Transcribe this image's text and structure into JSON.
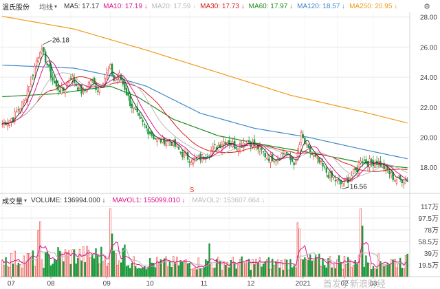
{
  "header": {
    "stock_name": "温氏股份",
    "period_label": "均线",
    "period_icon": "chevron-down-icon",
    "ma_items": [
      {
        "label": "MA5: 17.17",
        "color": "#333333",
        "arrow": ""
      },
      {
        "label": "MA10: 17.19",
        "color": "#e0138a",
        "arrow": "↓"
      },
      {
        "label": "MA20: 17.59",
        "color": "#b9b9b9",
        "arrow": "↓"
      },
      {
        "label": "MA30: 17.73",
        "color": "#d81b1b",
        "arrow": "↓"
      },
      {
        "label": "MA60: 17.97",
        "color": "#1e8a1e",
        "arrow": "↓"
      },
      {
        "label": "MA120: 18.57",
        "color": "#3c87c8",
        "arrow": "↓"
      },
      {
        "label": "MA250: 20.95",
        "color": "#ef9a1a",
        "arrow": "↓"
      }
    ],
    "settings_icon": "gear-icon"
  },
  "volume_header": {
    "title": "成交量",
    "items": [
      {
        "label": "VOLUME: 136994.000",
        "color": "#333333",
        "arrow": "↓"
      },
      {
        "label": "MAVOL1: 155099.010",
        "color": "#e0138a",
        "arrow": "↓"
      },
      {
        "label": "MAVOL2: 153607.664",
        "color": "#b9b9b9",
        "arrow": "↓"
      }
    ]
  },
  "watermark": "首发于新浪财经",
  "colors": {
    "up": "#e8413c",
    "down": "#1c9a3c",
    "grid": "#e6e6e6",
    "axis_text": "#444444"
  },
  "chart_data": [
    {
      "type": "candlestick",
      "title": "",
      "ylim": [
        16.5,
        28.4
      ],
      "y_ticks": [
        "28.00",
        "26.00",
        "24.00",
        "22.00",
        "20.00",
        "18.00"
      ],
      "x_ticks": [
        "07",
        "08",
        "09",
        "10",
        "11",
        "12",
        "2021",
        "02",
        "03"
      ],
      "grid": true,
      "annotations": [
        {
          "label": "26.18",
          "type": "high"
        },
        {
          "label": "16.56",
          "type": "low"
        },
        {
          "label": "S",
          "type": "marker"
        }
      ],
      "anchors": [
        [
          0,
          20.9,
          "d"
        ],
        [
          6,
          21.3,
          "u"
        ],
        [
          12,
          22.4,
          "u"
        ],
        [
          17,
          24.3,
          "u"
        ],
        [
          21,
          25.9,
          "u"
        ],
        [
          24,
          25.2,
          "d"
        ],
        [
          27,
          24.1,
          "d"
        ],
        [
          30,
          23.3,
          "d"
        ],
        [
          34,
          23.1,
          "u"
        ],
        [
          38,
          24.1,
          "u"
        ],
        [
          41,
          23.5,
          "d"
        ],
        [
          45,
          22.9,
          "d"
        ],
        [
          49,
          23.8,
          "u"
        ],
        [
          53,
          23.2,
          "d"
        ],
        [
          57,
          24.0,
          "u"
        ],
        [
          60,
          24.6,
          "u"
        ],
        [
          62,
          23.8,
          "d"
        ],
        [
          65,
          24.1,
          "u"
        ],
        [
          68,
          23.3,
          "d"
        ],
        [
          71,
          22.3,
          "d"
        ],
        [
          76,
          21.2,
          "d"
        ],
        [
          80,
          20.6,
          "d"
        ],
        [
          86,
          19.8,
          "d"
        ],
        [
          93,
          19.8,
          "u"
        ],
        [
          100,
          18.9,
          "d"
        ],
        [
          105,
          18.5,
          "d"
        ],
        [
          108,
          18.5,
          "u"
        ],
        [
          113,
          18.8,
          "u"
        ],
        [
          118,
          19.3,
          "u"
        ],
        [
          124,
          19.8,
          "u"
        ],
        [
          130,
          19.4,
          "d"
        ],
        [
          136,
          19.8,
          "u"
        ],
        [
          142,
          19.3,
          "d"
        ],
        [
          147,
          18.7,
          "d"
        ],
        [
          152,
          18.6,
          "u"
        ],
        [
          157,
          19.0,
          "u"
        ],
        [
          160,
          18.5,
          "d"
        ],
        [
          163,
          18.3,
          "d"
        ],
        [
          166,
          20.1,
          "u"
        ],
        [
          170,
          19.1,
          "d"
        ],
        [
          176,
          18.3,
          "d"
        ],
        [
          182,
          17.4,
          "d"
        ],
        [
          188,
          16.9,
          "d"
        ],
        [
          193,
          17.3,
          "u"
        ],
        [
          197,
          17.9,
          "u"
        ],
        [
          199,
          18.6,
          "u"
        ],
        [
          203,
          18.3,
          "d"
        ],
        [
          208,
          18.4,
          "u"
        ],
        [
          213,
          17.9,
          "d"
        ],
        [
          218,
          17.2,
          "d"
        ],
        [
          225,
          17.2,
          "u"
        ]
      ],
      "highs_lows": [
        {
          "index": 22,
          "high": 26.18
        },
        {
          "index": 188,
          "low": 16.56
        }
      ],
      "moving_averages": [
        {
          "name": "MA5",
          "color": "#333333",
          "period": 5
        },
        {
          "name": "MA10",
          "color": "#e0138a",
          "period": 10
        },
        {
          "name": "MA20",
          "color": "#b9b9b9",
          "period": 20
        },
        {
          "name": "MA30",
          "color": "#d81b1b",
          "period": 30
        },
        {
          "name": "MA60",
          "color": "#1e8a1e",
          "period": 60
        },
        {
          "name": "MA120",
          "color": "#3c87c8",
          "period": 120
        },
        {
          "name": "MA250",
          "color": "#ef9a1a",
          "period": 250
        }
      ],
      "ma250_points": [
        [
          0,
          28.05
        ],
        [
          40,
          27.2
        ],
        [
          80,
          25.8
        ],
        [
          120,
          24.3
        ],
        [
          160,
          22.8
        ],
        [
          200,
          21.7
        ],
        [
          225,
          20.95
        ]
      ],
      "ma120_points": [
        [
          0,
          24.8
        ],
        [
          40,
          24.6
        ],
        [
          60,
          24.1
        ],
        [
          80,
          23.4
        ],
        [
          110,
          21.6
        ],
        [
          140,
          20.6
        ],
        [
          170,
          20.0
        ],
        [
          200,
          19.2
        ],
        [
          225,
          18.57
        ]
      ],
      "ma60_points": [
        [
          0,
          22.7
        ],
        [
          30,
          22.9
        ],
        [
          60,
          23.4
        ],
        [
          75,
          22.7
        ],
        [
          95,
          21.2
        ],
        [
          120,
          20.1
        ],
        [
          150,
          19.4
        ],
        [
          175,
          18.9
        ],
        [
          200,
          18.3
        ],
        [
          225,
          17.97
        ]
      ]
    },
    {
      "type": "bar",
      "title": "成交量",
      "ylim": [
        0,
        1170000
      ],
      "y_ticks": [
        "117万",
        "97.5万",
        "78万",
        "58.5万",
        "39万",
        "19.5万"
      ],
      "series": [
        {
          "name": "VOLUME",
          "values": "derived_per_day"
        },
        {
          "name": "MAVOL1",
          "color": "#e0138a"
        },
        {
          "name": "MAVOL2",
          "color": "#b9b9b9"
        }
      ],
      "spikes": [
        {
          "index": 20,
          "value": 760000
        },
        {
          "index": 21,
          "value": 900000
        },
        {
          "index": 60,
          "value": 1110000
        },
        {
          "index": 61,
          "value": 700000
        },
        {
          "index": 68,
          "value": 520000
        },
        {
          "index": 115,
          "value": 540000
        },
        {
          "index": 164,
          "value": 880000
        },
        {
          "index": 165,
          "value": 780000
        },
        {
          "index": 199,
          "value": 1110000
        },
        {
          "index": 200,
          "value": 830000
        }
      ]
    }
  ]
}
